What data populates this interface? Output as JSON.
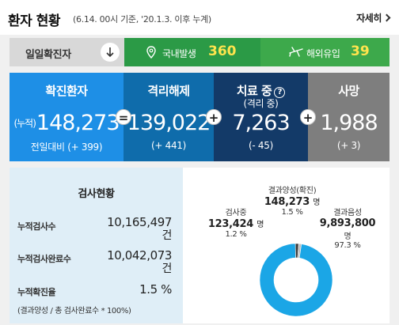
{
  "header": {
    "title": "환자 현황",
    "subtitle": "(6.14. 00시 기준, '20.1.3. 이후 누계)",
    "more_label": "자세히"
  },
  "daily": {
    "label": "일일확진자",
    "domestic_label": "국내발생",
    "domestic_value": "360",
    "overseas_label": "해외유입",
    "overseas_value": "39",
    "colors": {
      "domestic": "#2b9a46",
      "overseas": "#3da94b",
      "value": "#ffe44d"
    }
  },
  "stats": {
    "confirmed": {
      "title": "확진환자",
      "prefix": "(누적)",
      "value": "148,273",
      "change": "전일대비 (+ 399)"
    },
    "released": {
      "title": "격리해제",
      "value": "139,022",
      "change": "(+ 441)"
    },
    "treating": {
      "title": "치료 중",
      "subtitle": "(격리 중)",
      "help_icon": "question-circle-icon",
      "value": "7,263",
      "change": "(- 45)"
    },
    "deaths": {
      "title": "사망",
      "value": "1,988",
      "change": "(+ 3)"
    },
    "operators": [
      "=",
      "+",
      "+"
    ],
    "colors": {
      "confirmed": "#1e8fe6",
      "released": "#0f6cab",
      "treating": "#133a68",
      "deaths": "#7e7e7e"
    }
  },
  "tests": {
    "title": "검사현황",
    "rows": [
      {
        "label": "누적검사수",
        "value": "10,165,497",
        "unit": "건"
      },
      {
        "label": "누적검사완료수",
        "value": "10,042,073",
        "unit": "건"
      },
      {
        "label": "누적확진율",
        "value": "1.5 %",
        "unit": ""
      }
    ],
    "note": "(결과양성 / 총 검사완료수 * 100%)"
  },
  "chart_data": {
    "type": "pie",
    "donut": true,
    "slices": [
      {
        "name": "결과음성",
        "value": 9893800,
        "unit": "명",
        "value_text": "9,893,800",
        "percent": 97.3,
        "percent_text": "97.3 %",
        "color": "#1ba6e6"
      },
      {
        "name": "결과양성(확진)",
        "value": 148273,
        "unit": "명",
        "value_text": "148,273",
        "percent": 1.5,
        "percent_text": "1.5 %",
        "color": "#3a3a3a"
      },
      {
        "name": "검사중",
        "value": 123424,
        "unit": "명",
        "value_text": "123,424",
        "percent": 1.2,
        "percent_text": "1.2 %",
        "color": "#bdbdbd"
      }
    ]
  }
}
